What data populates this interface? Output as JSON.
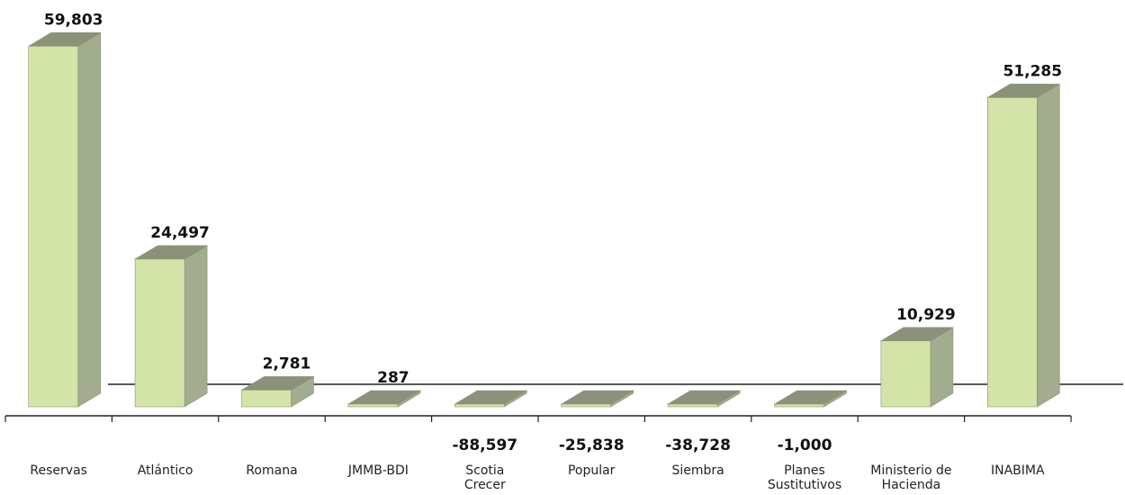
{
  "chart_data": {
    "type": "bar",
    "style": "3d-column",
    "categories": [
      [
        "Reservas"
      ],
      [
        "Atlántico"
      ],
      [
        "Romana"
      ],
      [
        "JMMB-BDI"
      ],
      [
        "Scotia",
        "Crecer"
      ],
      [
        "Popular"
      ],
      [
        "Siembra"
      ],
      [
        "Planes",
        "Sustitutivos"
      ],
      [
        "Ministerio de",
        "Hacienda"
      ],
      [
        "INABIMA"
      ]
    ],
    "values": [
      59803,
      24497,
      2781,
      287,
      -88597,
      -25838,
      -38728,
      -1000,
      10929,
      51285
    ],
    "value_labels": [
      "59,803",
      "24,497",
      "2,781",
      "287",
      "-88,597",
      "-25,838",
      "-38,728",
      "-1,000",
      "10,929",
      "51,285"
    ],
    "title": "",
    "xlabel": "",
    "ylabel": "",
    "grid": false,
    "legend": "none",
    "colors": {
      "front": "#d4e4a8",
      "side": "#a2ac8e",
      "top": "#8a927a",
      "edge": "#8a9470",
      "axis": "#222222"
    }
  }
}
